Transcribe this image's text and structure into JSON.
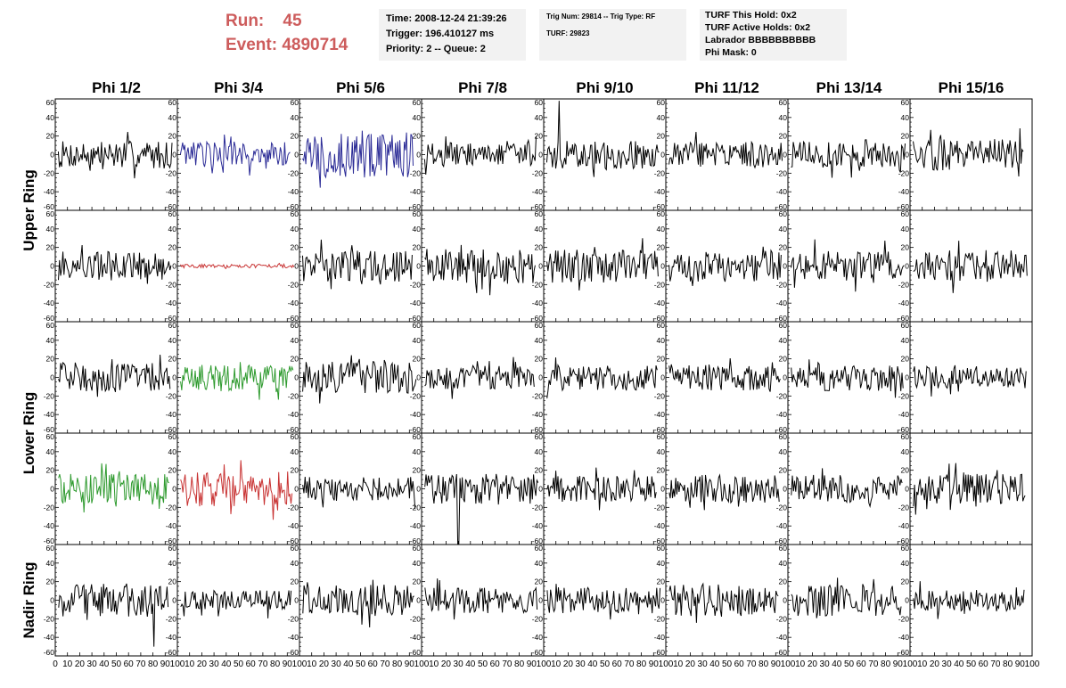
{
  "header": {
    "run_label": "Run:",
    "run_value": "45",
    "event_label": "Event:",
    "event_value": "4890714",
    "run_color": "#cd5c5c"
  },
  "info_time": [
    "Time: 2008-12-24 21:39:26",
    "Trigger: 196.410127 ms",
    "Priority: 2 -- Queue: 2"
  ],
  "info_trig": {
    "trig_line": "Trig Num: 29814 -- Trig Type: RF",
    "turf_line": "TURF: 29823"
  },
  "info_turf": [
    "TURF This Hold: 0x2",
    "TURF Active Holds: 0x2",
    "Labrador BBBBBBBBBB",
    "Phi Mask: 0"
  ],
  "chart_data": {
    "type": "line",
    "title": "",
    "columns": [
      "Phi 1/2",
      "Phi 3/4",
      "Phi 5/6",
      "Phi 7/8",
      "Phi 9/10",
      "Phi 11/12",
      "Phi 13/14",
      "Phi 15/16"
    ],
    "ring_labels": [
      "Upper Ring",
      "Lower Ring",
      "Nadir Ring"
    ],
    "ylim": [
      -60,
      60
    ],
    "xlim": [
      0,
      100
    ],
    "y_ticks": [
      -60,
      -40,
      -20,
      0,
      20,
      40,
      60
    ],
    "y_tick_labels": [
      "-60",
      "-40",
      "-20",
      "0",
      "20",
      "40",
      "60"
    ],
    "x_ticks": [
      0,
      10,
      20,
      30,
      40,
      50,
      60,
      70,
      80,
      90,
      100
    ],
    "x_tick_labels": [
      "0",
      "10",
      "20",
      "30",
      "40",
      "50",
      "60",
      "70",
      "80",
      "90",
      "100"
    ],
    "rows": 5,
    "grid": false,
    "approx_samples": 100,
    "panels": [
      {
        "row": 0,
        "col": 0,
        "color": "#000000",
        "amplitude": 15
      },
      {
        "row": 0,
        "col": 1,
        "color": "#2b2b96",
        "amplitude": 14
      },
      {
        "row": 0,
        "col": 2,
        "color": "#2b2b96",
        "amplitude": 25
      },
      {
        "row": 0,
        "col": 3,
        "color": "#000000",
        "amplitude": 13
      },
      {
        "row": 0,
        "col": 4,
        "color": "#000000",
        "amplitude": 15,
        "spike": {
          "x": 13,
          "y": 58
        }
      },
      {
        "row": 0,
        "col": 5,
        "color": "#000000",
        "amplitude": 14
      },
      {
        "row": 0,
        "col": 6,
        "color": "#000000",
        "amplitude": 14
      },
      {
        "row": 0,
        "col": 7,
        "color": "#000000",
        "amplitude": 17
      },
      {
        "row": 1,
        "col": 0,
        "color": "#000000",
        "amplitude": 16
      },
      {
        "row": 1,
        "col": 1,
        "color": "#c83232",
        "amplitude": 2
      },
      {
        "row": 1,
        "col": 2,
        "color": "#000000",
        "amplitude": 17
      },
      {
        "row": 1,
        "col": 3,
        "color": "#000000",
        "amplitude": 19
      },
      {
        "row": 1,
        "col": 4,
        "color": "#000000",
        "amplitude": 18
      },
      {
        "row": 1,
        "col": 5,
        "color": "#000000",
        "amplitude": 17
      },
      {
        "row": 1,
        "col": 6,
        "color": "#000000",
        "amplitude": 16
      },
      {
        "row": 1,
        "col": 7,
        "color": "#000000",
        "amplitude": 17
      },
      {
        "row": 2,
        "col": 0,
        "color": "#000000",
        "amplitude": 16
      },
      {
        "row": 2,
        "col": 1,
        "color": "#2e9a2e",
        "amplitude": 14
      },
      {
        "row": 2,
        "col": 2,
        "color": "#000000",
        "amplitude": 17
      },
      {
        "row": 2,
        "col": 3,
        "color": "#000000",
        "amplitude": 13
      },
      {
        "row": 2,
        "col": 4,
        "color": "#000000",
        "amplitude": 14
      },
      {
        "row": 2,
        "col": 5,
        "color": "#000000",
        "amplitude": 14
      },
      {
        "row": 2,
        "col": 6,
        "color": "#000000",
        "amplitude": 15
      },
      {
        "row": 2,
        "col": 7,
        "color": "#000000",
        "amplitude": 12
      },
      {
        "row": 3,
        "col": 0,
        "color": "#2e9a2e",
        "amplitude": 16
      },
      {
        "row": 3,
        "col": 1,
        "color": "#c83232",
        "amplitude": 19
      },
      {
        "row": 3,
        "col": 2,
        "color": "#000000",
        "amplitude": 13
      },
      {
        "row": 3,
        "col": 3,
        "color": "#000000",
        "amplitude": 16,
        "spike": {
          "x": 30,
          "y": -60
        }
      },
      {
        "row": 3,
        "col": 4,
        "color": "#000000",
        "amplitude": 14
      },
      {
        "row": 3,
        "col": 5,
        "color": "#000000",
        "amplitude": 15
      },
      {
        "row": 3,
        "col": 6,
        "color": "#000000",
        "amplitude": 15
      },
      {
        "row": 3,
        "col": 7,
        "color": "#000000",
        "amplitude": 16
      },
      {
        "row": 4,
        "col": 0,
        "color": "#000000",
        "amplitude": 18,
        "spike": {
          "x": 81,
          "y": -50
        }
      },
      {
        "row": 4,
        "col": 1,
        "color": "#000000",
        "amplitude": 11
      },
      {
        "row": 4,
        "col": 2,
        "color": "#000000",
        "amplitude": 17
      },
      {
        "row": 4,
        "col": 3,
        "color": "#000000",
        "amplitude": 14
      },
      {
        "row": 4,
        "col": 4,
        "color": "#000000",
        "amplitude": 14
      },
      {
        "row": 4,
        "col": 5,
        "color": "#000000",
        "amplitude": 17
      },
      {
        "row": 4,
        "col": 6,
        "color": "#000000",
        "amplitude": 17
      },
      {
        "row": 4,
        "col": 7,
        "color": "#000000",
        "amplitude": 12
      }
    ]
  }
}
